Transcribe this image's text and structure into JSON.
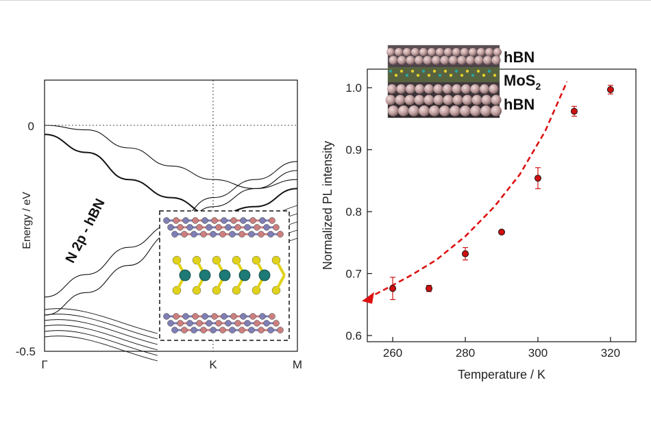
{
  "chart_data": [
    {
      "type": "line",
      "ylabel": "Energy / eV",
      "y_ticks": [
        "0",
        "-0.5"
      ],
      "x_ticks": [
        "Γ",
        "K",
        "M"
      ],
      "ylim": [
        -0.5,
        0.1
      ],
      "band_annotation": "N 2p - hBN",
      "inset_image": "hBN / MoS2 / hBN heterostructure side view (atomic ball-and-stick)",
      "series": [
        {
          "x": [
            0,
            0.5,
            1,
            1.5,
            2,
            2.5,
            3
          ],
          "values": [
            0,
            -0.01,
            -0.05,
            -0.09,
            -0.12,
            -0.14,
            -0.12
          ]
        },
        {
          "x": [
            0,
            0.5,
            1,
            1.5,
            2,
            2.5,
            3
          ],
          "values": [
            -0.02,
            -0.06,
            -0.12,
            -0.16,
            -0.2,
            -0.18,
            -0.14
          ]
        },
        {
          "x": [
            0,
            0.5,
            1,
            1.5,
            2,
            2.5,
            3
          ],
          "values": [
            -0.38,
            -0.33,
            -0.27,
            -0.22,
            -0.16,
            -0.12,
            -0.08
          ]
        },
        {
          "x": [
            0,
            0.5,
            1,
            1.5,
            2,
            2.5,
            3
          ],
          "values": [
            -0.42,
            -0.37,
            -0.31,
            -0.24,
            -0.18,
            -0.14,
            -0.1
          ]
        }
      ],
      "grid": false,
      "reference_lines": {
        "y": [
          0
        ],
        "x": [
          "K"
        ]
      }
    },
    {
      "type": "scatter",
      "xlabel": "Temperature / K",
      "ylabel": "Normalized PL intensity",
      "xlim": [
        253,
        327
      ],
      "ylim": [
        0.59,
        1.03
      ],
      "x_ticks": [
        260,
        280,
        300,
        320
      ],
      "y_ticks": [
        "0.6",
        "0.7",
        "0.8",
        "0.9",
        "1.0"
      ],
      "series": [
        {
          "x": [
            260,
            270,
            280,
            290,
            300,
            310,
            320
          ],
          "values": [
            0.676,
            0.676,
            0.732,
            0.767,
            0.854,
            0.962,
            0.997
          ],
          "error": [
            0.018,
            0.005,
            0.01,
            0.0,
            0.017,
            0.008,
            0.007
          ],
          "color": "#cc1414"
        }
      ],
      "trend_curve": {
        "x": [
          253,
          258,
          265,
          272,
          280,
          288,
          295,
          302,
          308
        ],
        "values": [
          0.66,
          0.675,
          0.697,
          0.722,
          0.76,
          0.808,
          0.86,
          0.93,
          1.01
        ],
        "style": "dashed",
        "color": "#dd1111"
      },
      "inset_labels": [
        "hBN",
        "MoS",
        "hBN"
      ],
      "inset_subscript": "2",
      "grid": false
    }
  ]
}
